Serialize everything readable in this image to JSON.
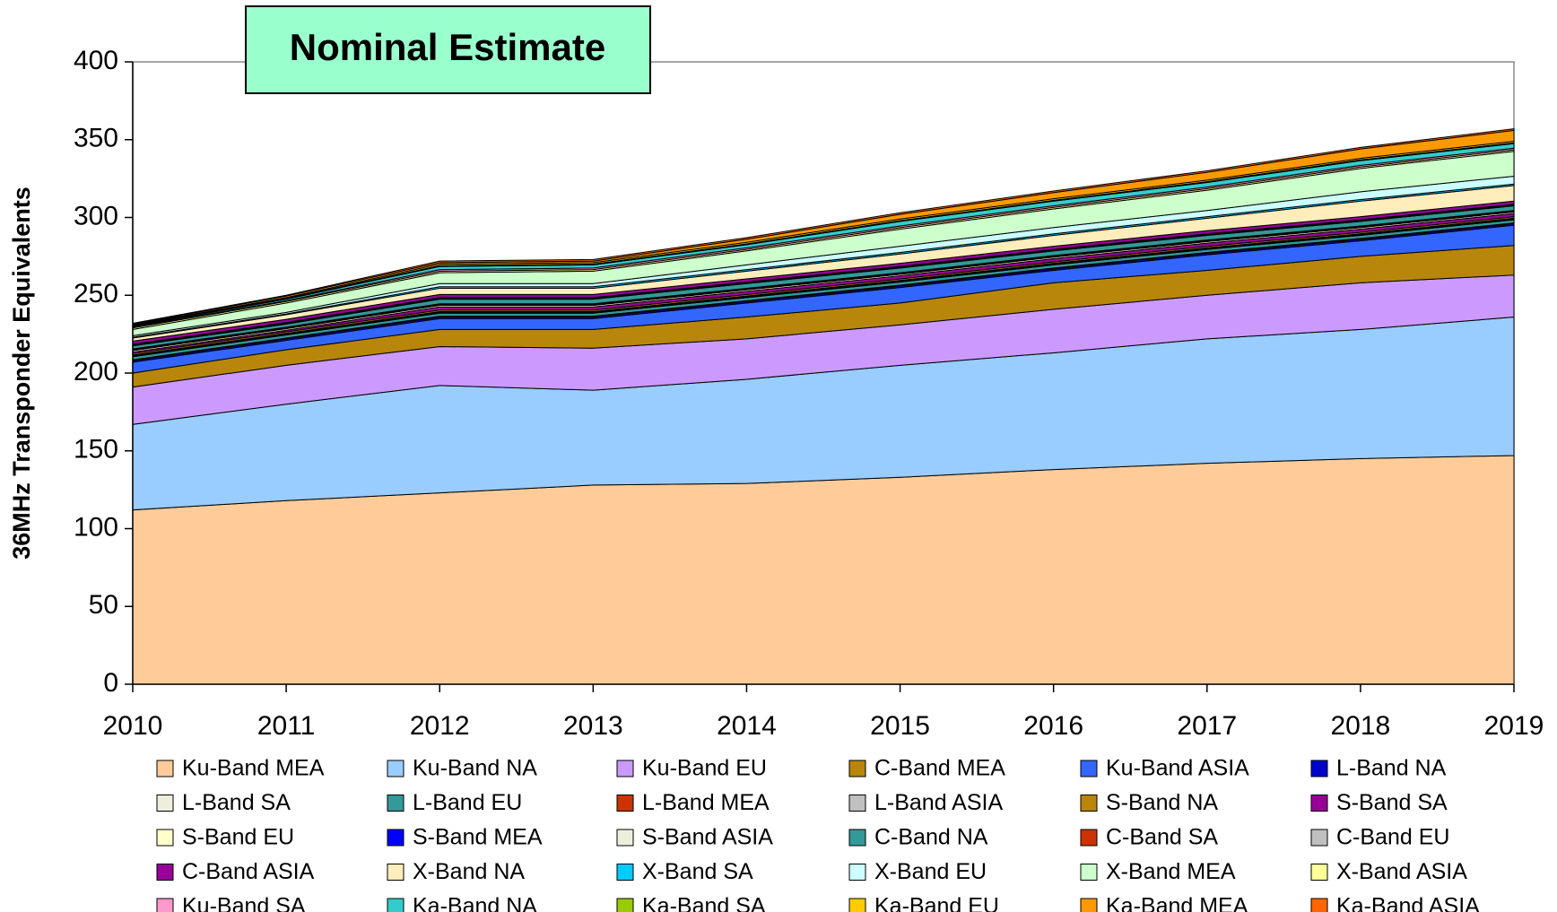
{
  "chart_data": {
    "type": "stacked_area",
    "title": "Nominal Estimate",
    "y_label": "36MHz Transponder Equivalents",
    "categories": [
      "2010",
      "2011",
      "2012",
      "2013",
      "2014",
      "2015",
      "2016",
      "2017",
      "2018",
      "2019"
    ],
    "ylim": [
      0,
      400
    ],
    "yticks": [
      0,
      50,
      100,
      150,
      200,
      250,
      300,
      350,
      400
    ],
    "series": [
      {
        "name": "Ku-Band MEA",
        "color": "#ffcc99",
        "values": [
          112,
          118,
          123,
          128,
          129,
          133,
          138,
          142,
          145,
          147
        ]
      },
      {
        "name": "Ku-Band NA",
        "color": "#99ccff",
        "values": [
          55,
          62,
          69,
          61,
          67,
          72,
          75,
          80,
          83,
          89
        ]
      },
      {
        "name": "Ku-Band EU",
        "color": "#cc99ff",
        "values": [
          24,
          25,
          25,
          27,
          26,
          26,
          28,
          28,
          30,
          27
        ]
      },
      {
        "name": "C-Band MEA",
        "color": "#b8860b",
        "values": [
          9,
          10,
          11,
          12,
          14,
          14,
          17,
          16,
          17,
          19
        ]
      },
      {
        "name": "Ku-Band ASIA",
        "color": "#3366ff",
        "values": [
          7,
          6,
          7,
          7,
          9,
          10,
          8,
          10,
          10,
          13
        ]
      },
      {
        "name": "L-Band NA",
        "color": "#0000cc",
        "values": [
          1,
          1,
          1,
          1,
          1,
          1,
          1,
          1,
          1,
          1
        ]
      },
      {
        "name": "L-Band SA",
        "color": "#eeeedd",
        "values": [
          0.5,
          0.5,
          0.5,
          0.5,
          0.5,
          0.5,
          0.5,
          0.5,
          0.5,
          0.5
        ]
      },
      {
        "name": "L-Band EU",
        "color": "#339999",
        "values": [
          2,
          2,
          2,
          2,
          2,
          2,
          2,
          2,
          2,
          2
        ]
      },
      {
        "name": "L-Band MEA",
        "color": "#cc3300",
        "values": [
          0.5,
          0.5,
          0.5,
          0.5,
          0.5,
          0.5,
          0.5,
          0.5,
          0.5,
          0.5
        ]
      },
      {
        "name": "L-Band ASIA",
        "color": "#c0c0c0",
        "values": [
          0.5,
          0.5,
          0.5,
          0.5,
          0.5,
          0.5,
          0.5,
          0.5,
          0.5,
          0.5
        ]
      },
      {
        "name": "S-Band NA",
        "color": "#b8860b",
        "values": [
          1,
          1,
          1,
          1,
          1,
          1,
          1,
          1,
          1,
          1
        ]
      },
      {
        "name": "S-Band SA",
        "color": "#990099",
        "values": [
          1,
          1,
          2,
          2,
          2,
          2,
          2,
          2,
          2,
          2
        ]
      },
      {
        "name": "S-Band EU",
        "color": "#ffffcc",
        "values": [
          1,
          1,
          1,
          1,
          1,
          1,
          1,
          1,
          1,
          1
        ]
      },
      {
        "name": "S-Band MEA",
        "color": "#0000ff",
        "values": [
          0.5,
          0.5,
          0.5,
          0.5,
          0.5,
          0.5,
          0.5,
          0.5,
          0.5,
          0.5
        ]
      },
      {
        "name": "S-Band ASIA",
        "color": "#eeeedd",
        "values": [
          0.5,
          0.5,
          0.5,
          0.5,
          0.5,
          0.5,
          0.5,
          0.5,
          0.5,
          0.5
        ]
      },
      {
        "name": "C-Band NA",
        "color": "#339999",
        "values": [
          2,
          2,
          3,
          3,
          3,
          3,
          3,
          3,
          3,
          3
        ]
      },
      {
        "name": "C-Band SA",
        "color": "#cc3300",
        "values": [
          0.5,
          0.5,
          0.5,
          0.5,
          0.5,
          0.5,
          0.5,
          0.5,
          0.5,
          0.5
        ]
      },
      {
        "name": "C-Band EU",
        "color": "#c0c0c0",
        "values": [
          0.5,
          0.5,
          0.5,
          0.5,
          0.5,
          0.5,
          0.5,
          0.5,
          0.5,
          0.5
        ]
      },
      {
        "name": "C-Band ASIA",
        "color": "#990099",
        "values": [
          2,
          2,
          2,
          2,
          2,
          2,
          2,
          2,
          2,
          2
        ]
      },
      {
        "name": "X-Band NA",
        "color": "#ffeebb",
        "values": [
          2,
          3,
          4,
          4,
          5,
          6,
          7,
          8,
          10,
          10
        ]
      },
      {
        "name": "X-Band SA",
        "color": "#00ccff",
        "values": [
          0.5,
          0.5,
          1,
          1,
          1,
          1,
          1,
          1,
          1,
          1
        ]
      },
      {
        "name": "X-Band EU",
        "color": "#ccffff",
        "values": [
          1,
          1,
          2,
          2,
          3,
          4,
          4,
          4,
          5,
          5
        ]
      },
      {
        "name": "X-Band MEA",
        "color": "#ccffcc",
        "values": [
          4,
          6,
          7,
          8,
          9,
          11,
          12,
          13,
          15,
          16
        ]
      },
      {
        "name": "X-Band ASIA",
        "color": "#ffff99",
        "values": [
          1,
          1,
          1,
          1,
          1,
          1,
          1,
          1,
          1,
          1
        ]
      },
      {
        "name": "Ku-Band SA",
        "color": "#ff99cc",
        "values": [
          0.5,
          0.5,
          1,
          1,
          1,
          1,
          1,
          1,
          1,
          1
        ]
      },
      {
        "name": "Ka-Band NA",
        "color": "#33cccc",
        "values": [
          0.5,
          1,
          2,
          2,
          2,
          3,
          3,
          3,
          3,
          3
        ]
      },
      {
        "name": "Ka-Band SA",
        "color": "#99cc00",
        "values": [
          0.5,
          0.5,
          0.5,
          0.5,
          0.5,
          0.5,
          0.5,
          0.5,
          0.5,
          0.5
        ]
      },
      {
        "name": "Ka-Band EU",
        "color": "#ffcc00",
        "values": [
          0.5,
          0.5,
          1,
          1,
          1,
          1,
          1,
          1,
          1,
          1
        ]
      },
      {
        "name": "Ka-Band MEA",
        "color": "#ff9900",
        "values": [
          0.5,
          1,
          1,
          1,
          2,
          3,
          4,
          5,
          6,
          7
        ]
      },
      {
        "name": "Ka-Band ASIA",
        "color": "#ff6600",
        "values": [
          0.5,
          0.5,
          1,
          1,
          1,
          1,
          1,
          1,
          1,
          1
        ]
      }
    ]
  }
}
